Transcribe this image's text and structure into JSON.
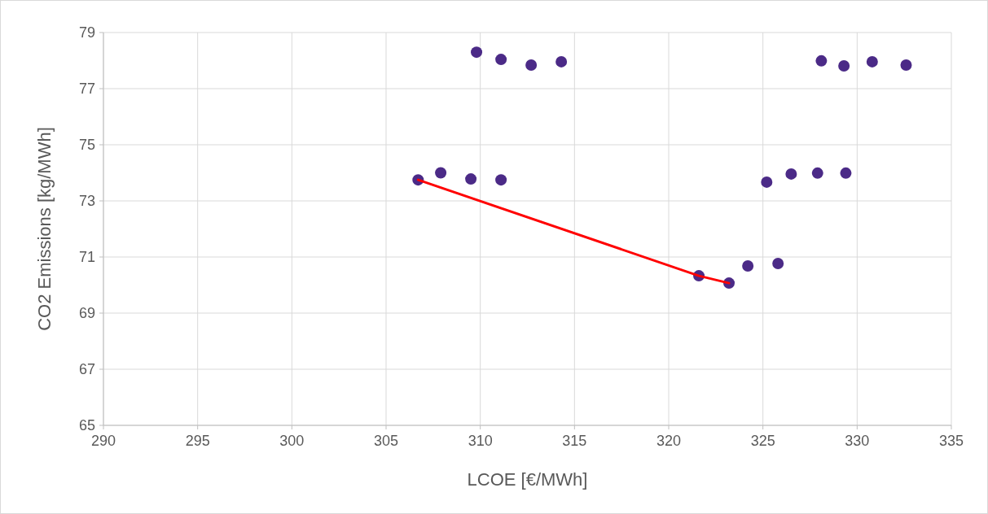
{
  "chart_data": {
    "type": "scatter",
    "xlabel": "LCOE [€/MWh]",
    "ylabel": "CO2 Emissions [kg/MWh]",
    "xlim": [
      290,
      335
    ],
    "xticks": [
      290,
      295,
      300,
      305,
      310,
      315,
      320,
      325,
      330,
      335
    ],
    "ylim": [
      65,
      79
    ],
    "yticks": [
      65,
      67,
      69,
      71,
      73,
      75,
      77,
      79
    ],
    "grid": true,
    "marker": "circle",
    "series": [
      {
        "color": "#4b2a87",
        "x": [
          306.7,
          307.9,
          309.5,
          311.1,
          309.8,
          311.1,
          312.7,
          314.3,
          321.6,
          323.2,
          324.2,
          325.8,
          325.2,
          326.5,
          327.9,
          329.4,
          328.1,
          329.3,
          330.8,
          332.6
        ],
        "values": [
          73.75,
          74.0,
          73.78,
          73.75,
          78.3,
          78.04,
          77.84,
          77.96,
          70.33,
          70.07,
          70.68,
          70.77,
          73.67,
          73.96,
          73.99,
          73.99,
          77.99,
          77.81,
          77.96,
          77.84
        ]
      },
      {
        "type": "line",
        "color": "#ff0000",
        "marker": "none",
        "x": [
          306.7,
          321.6,
          323.2
        ],
        "values": [
          73.75,
          70.33,
          70.07
        ]
      }
    ]
  }
}
